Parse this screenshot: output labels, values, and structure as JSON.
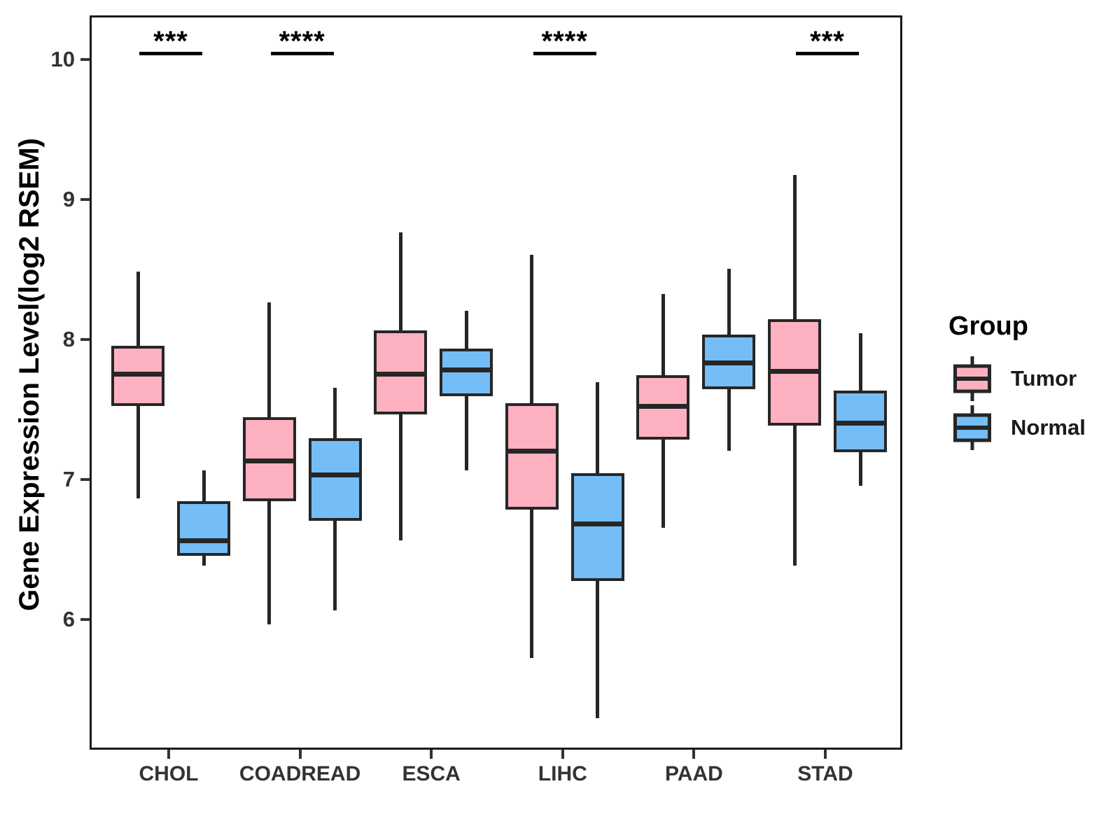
{
  "legend": {
    "title": "Group",
    "items": [
      {
        "label": "Tumor",
        "color": "#FDB1C0"
      },
      {
        "label": "Normal",
        "color": "#74BDF7"
      }
    ]
  },
  "chart_data": {
    "type": "boxplot",
    "title": "",
    "xlabel": "",
    "ylabel": "Gene Expression Level(log2 RSEM)",
    "categories": [
      "CHOL",
      "COADREAD",
      "ESCA",
      "LIHC",
      "PAAD",
      "STAD"
    ],
    "yticks": [
      10,
      9,
      8,
      7,
      6
    ],
    "ylim": [
      5.05,
      10.32
    ],
    "grid": false,
    "legend_position": "right",
    "box_stroke_color": "#262626",
    "series": [
      {
        "name": "Tumor",
        "color": "#FDB1C0",
        "boxes": [
          {
            "category": "CHOL",
            "low": 6.88,
            "q1": 7.54,
            "median": 7.77,
            "q3": 7.97,
            "high": 8.5
          },
          {
            "category": "COADREAD",
            "low": 5.98,
            "q1": 6.86,
            "median": 7.15,
            "q3": 7.46,
            "high": 8.28
          },
          {
            "category": "ESCA",
            "low": 6.58,
            "q1": 7.48,
            "median": 7.77,
            "q3": 8.08,
            "high": 8.78
          },
          {
            "category": "LIHC",
            "low": 5.74,
            "q1": 6.8,
            "median": 7.22,
            "q3": 7.56,
            "high": 8.62
          },
          {
            "category": "PAAD",
            "low": 6.67,
            "q1": 7.3,
            "median": 7.54,
            "q3": 7.76,
            "high": 8.34
          },
          {
            "category": "STAD",
            "low": 6.4,
            "q1": 7.4,
            "median": 7.79,
            "q3": 8.16,
            "high": 9.19
          }
        ]
      },
      {
        "name": "Normal",
        "color": "#74BDF7",
        "boxes": [
          {
            "category": "CHOL",
            "low": 6.4,
            "q1": 6.47,
            "median": 6.58,
            "q3": 6.86,
            "high": 7.08
          },
          {
            "category": "COADREAD",
            "low": 6.08,
            "q1": 6.72,
            "median": 7.05,
            "q3": 7.31,
            "high": 7.67
          },
          {
            "category": "ESCA",
            "low": 7.08,
            "q1": 7.61,
            "median": 7.8,
            "q3": 7.95,
            "high": 8.22
          },
          {
            "category": "LIHC",
            "low": 5.31,
            "q1": 6.29,
            "median": 6.7,
            "q3": 7.06,
            "high": 7.71
          },
          {
            "category": "PAAD",
            "low": 7.22,
            "q1": 7.66,
            "median": 7.85,
            "q3": 8.05,
            "high": 8.52
          },
          {
            "category": "STAD",
            "low": 6.97,
            "q1": 7.21,
            "median": 7.42,
            "q3": 7.65,
            "high": 8.06
          }
        ]
      }
    ],
    "significance": [
      {
        "category": "CHOL",
        "label": "***"
      },
      {
        "category": "COADREAD",
        "label": "****"
      },
      {
        "category": "LIHC",
        "label": "****"
      },
      {
        "category": "STAD",
        "label": "***"
      }
    ]
  }
}
